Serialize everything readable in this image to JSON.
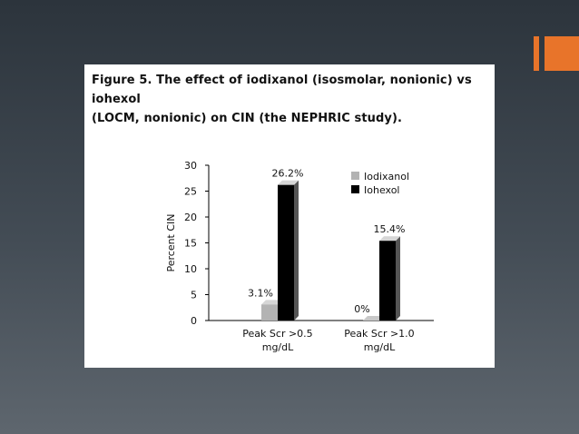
{
  "slide": {
    "accent_color": "#e8742a"
  },
  "figure": {
    "caption_line1": "Figure 5. The effect of iodixanol (isosmolar, nonionic) vs iohexol",
    "caption_line2": "(LOCM, nonionic) on CIN (the NEPHRIC study)."
  },
  "chart_data": {
    "type": "bar",
    "title": "",
    "xlabel": "",
    "ylabel": "Percent CIN",
    "ylim": [
      0,
      30
    ],
    "yticks": [
      0,
      5,
      10,
      15,
      20,
      25,
      30
    ],
    "categories": [
      [
        "Peak Scr >0.5",
        "mg/dL"
      ],
      [
        "Peak Scr >1.0",
        "mg/dL"
      ]
    ],
    "series": [
      {
        "name": "Iodixanol",
        "color": "#b3b3b3",
        "values": [
          3.1,
          0
        ],
        "labels": [
          "3.1%",
          "0%"
        ]
      },
      {
        "name": "Iohexol",
        "color": "#000000",
        "values": [
          26.2,
          15.4
        ],
        "labels": [
          "26.2%",
          "15.4%"
        ]
      }
    ],
    "legend_position": "top-right",
    "grid": false
  }
}
